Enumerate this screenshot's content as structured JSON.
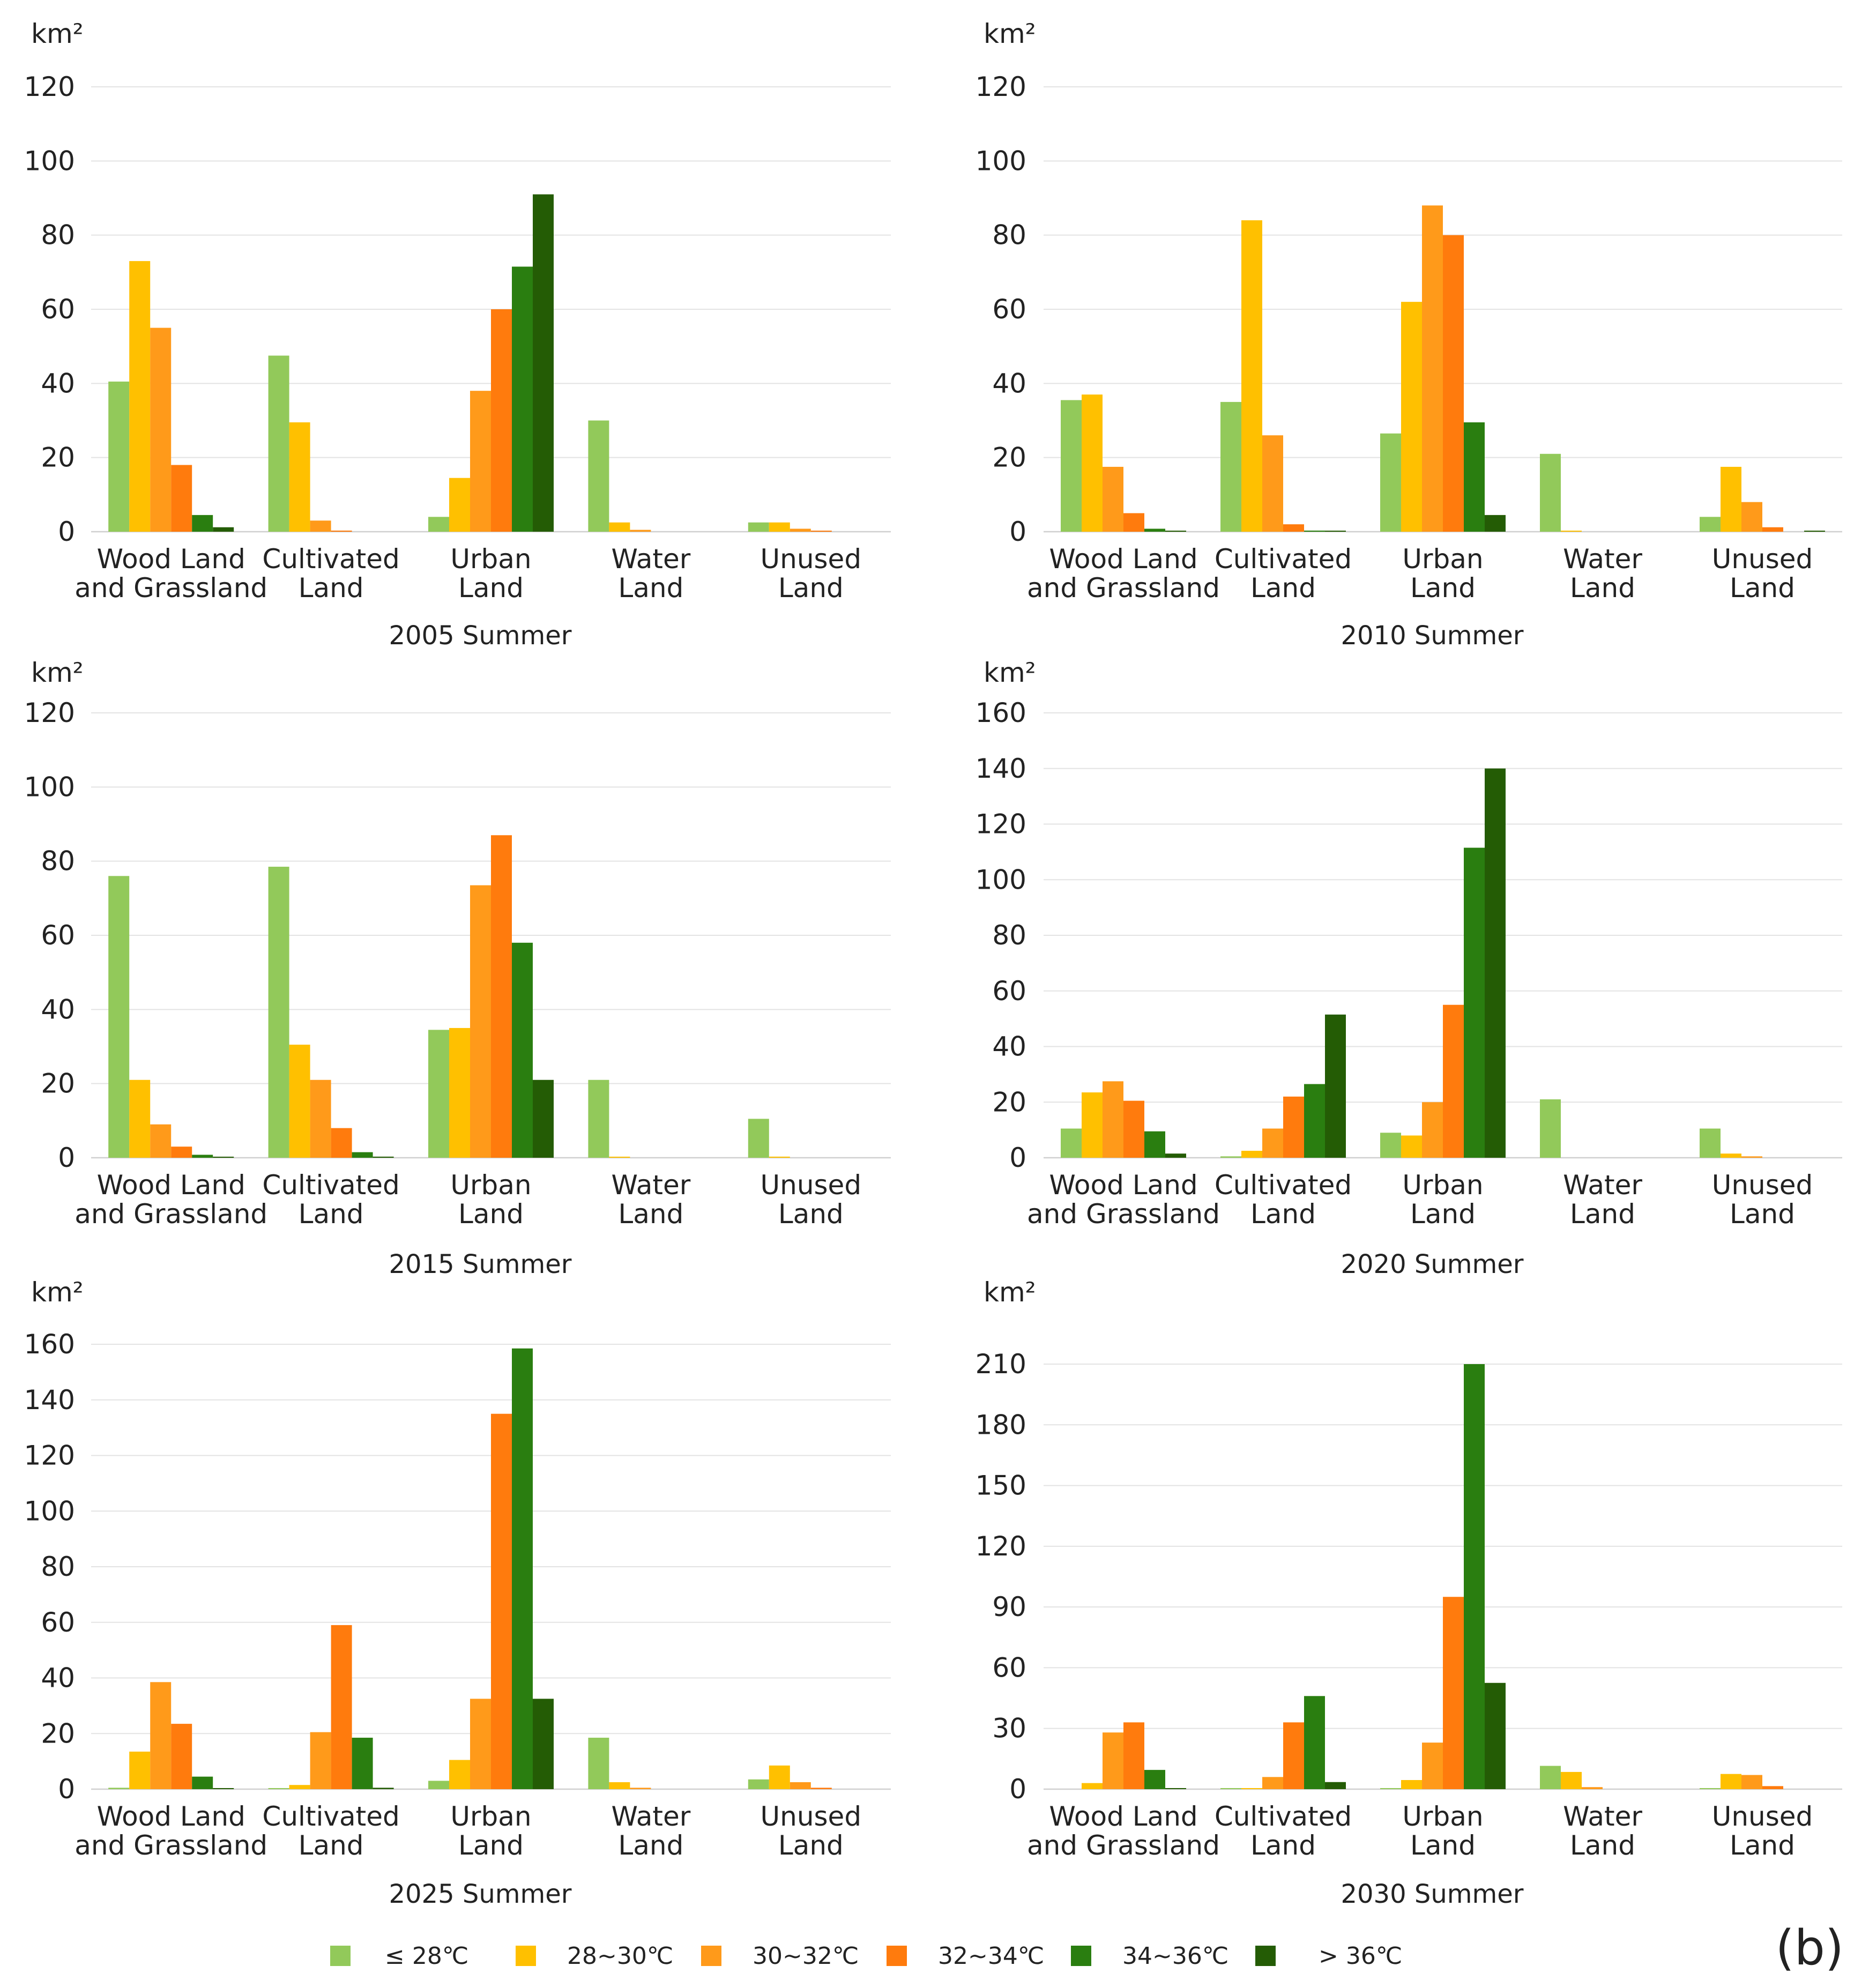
{
  "panel_tag": "(b)",
  "legend": [
    {
      "label": "≤ 28℃",
      "color": "#92c95a"
    },
    {
      "label": "28~30℃",
      "color": "#ffc000"
    },
    {
      "label": "30~32℃",
      "color": "#ff9a1a"
    },
    {
      "label": "32~34℃",
      "color": "#ff7b0d"
    },
    {
      "label": "34~36℃",
      "color": "#2a7e10"
    },
    {
      "label": "> 36℃",
      "color": "#245c05"
    }
  ],
  "chart_data": [
    {
      "type": "bar",
      "title": "2005 Summer",
      "ylabel": "km²",
      "ylim": [
        0,
        120
      ],
      "yticks": [
        0,
        20,
        40,
        60,
        80,
        100,
        120
      ],
      "categories": [
        [
          "Wood Land",
          "and Grassland"
        ],
        [
          "Cultivated",
          "Land"
        ],
        [
          "Urban",
          "Land"
        ],
        [
          "Water",
          "Land"
        ],
        [
          "Unused",
          "Land"
        ]
      ],
      "series": [
        {
          "name": "≤ 28℃",
          "values": [
            40.5,
            47.5,
            4,
            30,
            2.5
          ]
        },
        {
          "name": "28~30℃",
          "values": [
            73,
            29.5,
            14.5,
            2.5,
            2.5
          ]
        },
        {
          "name": "30~32℃",
          "values": [
            55,
            3,
            38,
            0.5,
            0.8
          ]
        },
        {
          "name": "32~34℃",
          "values": [
            18,
            0.3,
            60,
            0,
            0.2
          ]
        },
        {
          "name": "34~36℃",
          "values": [
            4.5,
            0,
            71.5,
            0,
            0
          ]
        },
        {
          "name": "> 36℃",
          "values": [
            1.2,
            0,
            91,
            0,
            0
          ]
        }
      ]
    },
    {
      "type": "bar",
      "title": "2010 Summer",
      "ylabel": "km²",
      "ylim": [
        0,
        120
      ],
      "yticks": [
        0,
        20,
        40,
        60,
        80,
        100,
        120
      ],
      "categories": [
        [
          "Wood Land",
          "and Grassland"
        ],
        [
          "Cultivated",
          "Land"
        ],
        [
          "Urban",
          "Land"
        ],
        [
          "Water",
          "Land"
        ],
        [
          "Unused",
          "Land"
        ]
      ],
      "series": [
        {
          "name": "≤ 28℃",
          "values": [
            35.5,
            35,
            26.5,
            21,
            4
          ]
        },
        {
          "name": "28~30℃",
          "values": [
            37,
            84,
            62,
            0.2,
            17.5
          ]
        },
        {
          "name": "30~32℃",
          "values": [
            17.5,
            26,
            88,
            0,
            8
          ]
        },
        {
          "name": "32~34℃",
          "values": [
            5,
            2,
            80,
            0,
            1.2
          ]
        },
        {
          "name": "34~36℃",
          "values": [
            0.8,
            0.3,
            29.5,
            0,
            0
          ]
        },
        {
          "name": "> 36℃",
          "values": [
            0.2,
            0.2,
            4.5,
            0,
            0.2
          ]
        }
      ]
    },
    {
      "type": "bar",
      "title": "2015 Summer",
      "ylabel": "km²",
      "ylim": [
        0,
        120
      ],
      "yticks": [
        0,
        20,
        40,
        60,
        80,
        100,
        120
      ],
      "categories": [
        [
          "Wood Land",
          "and Grassland"
        ],
        [
          "Cultivated",
          "Land"
        ],
        [
          "Urban",
          "Land"
        ],
        [
          "Water",
          "Land"
        ],
        [
          "Unused",
          "Land"
        ]
      ],
      "series": [
        {
          "name": "≤ 28℃",
          "values": [
            76,
            78.5,
            34.5,
            21,
            10.5
          ]
        },
        {
          "name": "28~30℃",
          "values": [
            21,
            30.5,
            35,
            0.2,
            0.3
          ]
        },
        {
          "name": "30~32℃",
          "values": [
            9,
            21,
            73.5,
            0,
            0
          ]
        },
        {
          "name": "32~34℃",
          "values": [
            3,
            8,
            87,
            0,
            0
          ]
        },
        {
          "name": "34~36℃",
          "values": [
            0.8,
            1.5,
            58,
            0,
            0
          ]
        },
        {
          "name": "> 36℃",
          "values": [
            0.2,
            0.3,
            21,
            0,
            0
          ]
        }
      ]
    },
    {
      "type": "bar",
      "title": "2020 Summer",
      "ylabel": "km²",
      "ylim": [
        0,
        160
      ],
      "yticks": [
        0,
        20,
        40,
        60,
        80,
        100,
        120,
        140,
        160
      ],
      "categories": [
        [
          "Wood Land",
          "and Grassland"
        ],
        [
          "Cultivated",
          "Land"
        ],
        [
          "Urban",
          "Land"
        ],
        [
          "Water",
          "Land"
        ],
        [
          "Unused",
          "Land"
        ]
      ],
      "series": [
        {
          "name": "≤ 28℃",
          "values": [
            10.5,
            0.5,
            9,
            21,
            10.5
          ]
        },
        {
          "name": "28~30℃",
          "values": [
            23.5,
            2.5,
            8,
            0,
            1.5
          ]
        },
        {
          "name": "30~32℃",
          "values": [
            27.5,
            10.5,
            20,
            0,
            0.5
          ]
        },
        {
          "name": "32~34℃",
          "values": [
            20.5,
            22,
            55,
            0,
            0
          ]
        },
        {
          "name": "34~36℃",
          "values": [
            9.5,
            26.5,
            111.5,
            0,
            0
          ]
        },
        {
          "name": "> 36℃",
          "values": [
            1.5,
            51.5,
            140,
            0,
            0
          ]
        }
      ]
    },
    {
      "type": "bar",
      "title": "2025 Summer",
      "ylabel": "km²",
      "ylim": [
        0,
        160
      ],
      "yticks": [
        0,
        20,
        40,
        60,
        80,
        100,
        120,
        140,
        160
      ],
      "categories": [
        [
          "Wood Land",
          "and Grassland"
        ],
        [
          "Cultivated",
          "Land"
        ],
        [
          "Urban",
          "Land"
        ],
        [
          "Water",
          "Land"
        ],
        [
          "Unused",
          "Land"
        ]
      ],
      "series": [
        {
          "name": "≤ 28℃",
          "values": [
            0.5,
            0.2,
            3,
            18.5,
            3.5
          ]
        },
        {
          "name": "28~30℃",
          "values": [
            13.5,
            1.5,
            10.5,
            2.5,
            8.5
          ]
        },
        {
          "name": "30~32℃",
          "values": [
            38.5,
            20.5,
            32.5,
            0.5,
            2.5
          ]
        },
        {
          "name": "32~34℃",
          "values": [
            23.5,
            59,
            135,
            0,
            0.5
          ]
        },
        {
          "name": "34~36℃",
          "values": [
            4.5,
            18.5,
            158.5,
            0,
            0
          ]
        },
        {
          "name": "> 36℃",
          "values": [
            0.3,
            0.5,
            32.5,
            0,
            0
          ]
        }
      ]
    },
    {
      "type": "bar",
      "title": "2030 Summer",
      "ylabel": "km²",
      "ylim": [
        0,
        210
      ],
      "yticks": [
        0,
        30,
        60,
        90,
        120,
        150,
        180,
        210
      ],
      "categories": [
        [
          "Wood Land",
          "and Grassland"
        ],
        [
          "Cultivated",
          "Land"
        ],
        [
          "Urban",
          "Land"
        ],
        [
          "Water",
          "Land"
        ],
        [
          "Unused",
          "Land"
        ]
      ],
      "series": [
        {
          "name": "≤ 28℃",
          "values": [
            0,
            0.2,
            0.5,
            11.5,
            0.5
          ]
        },
        {
          "name": "28~30℃",
          "values": [
            3,
            0.5,
            4.5,
            8.5,
            7.5
          ]
        },
        {
          "name": "30~32℃",
          "values": [
            28,
            6,
            23,
            1,
            7
          ]
        },
        {
          "name": "32~34℃",
          "values": [
            33,
            33,
            95,
            0,
            1.5
          ]
        },
        {
          "name": "34~36℃",
          "values": [
            9.5,
            46,
            210,
            0,
            0
          ]
        },
        {
          "name": "> 36℃",
          "values": [
            0.5,
            3.5,
            52.5,
            0,
            0
          ]
        }
      ]
    }
  ]
}
